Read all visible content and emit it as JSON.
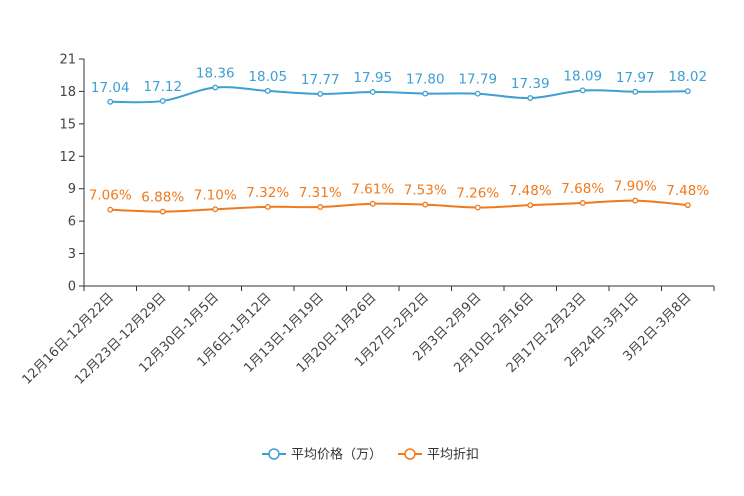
{
  "chart_data": {
    "type": "line",
    "title": "",
    "xlabel": "",
    "ylabel": "",
    "ylim": [
      0,
      21
    ],
    "yticks": [
      0,
      3,
      6,
      9,
      12,
      15,
      18,
      21
    ],
    "categories": [
      "12月16日-12月22日",
      "12月23日-12月29日",
      "12月30日-1月5日",
      "1月6日-1月12日",
      "1月13日-1月19日",
      "1月20日-1月26日",
      "1月27日-2月2日",
      "2月3日-2月9日",
      "2月10日-2月16日",
      "2月17日-2月23日",
      "2月24日-3月1日",
      "3月2日-3月8日"
    ],
    "series": [
      {
        "name": "平均价格（万）",
        "color": "#3d9fd3",
        "values": [
          17.04,
          17.12,
          18.36,
          18.05,
          17.77,
          17.95,
          17.8,
          17.79,
          17.39,
          18.09,
          17.97,
          18.02
        ],
        "labels": [
          "17.04",
          "17.12",
          "18.36",
          "18.05",
          "17.77",
          "17.95",
          "17.80",
          "17.79",
          "17.39",
          "18.09",
          "17.97",
          "18.02"
        ]
      },
      {
        "name": "平均折扣",
        "color": "#f07a1e",
        "values": [
          7.06,
          6.88,
          7.1,
          7.32,
          7.31,
          7.61,
          7.53,
          7.26,
          7.48,
          7.68,
          7.9,
          7.48
        ],
        "labels": [
          "7.06%",
          "6.88%",
          "7.10%",
          "7.32%",
          "7.31%",
          "7.61%",
          "7.53%",
          "7.26%",
          "7.48%",
          "7.68%",
          "7.90%",
          "7.48%"
        ]
      }
    ],
    "legend_position": "bottom-center"
  }
}
